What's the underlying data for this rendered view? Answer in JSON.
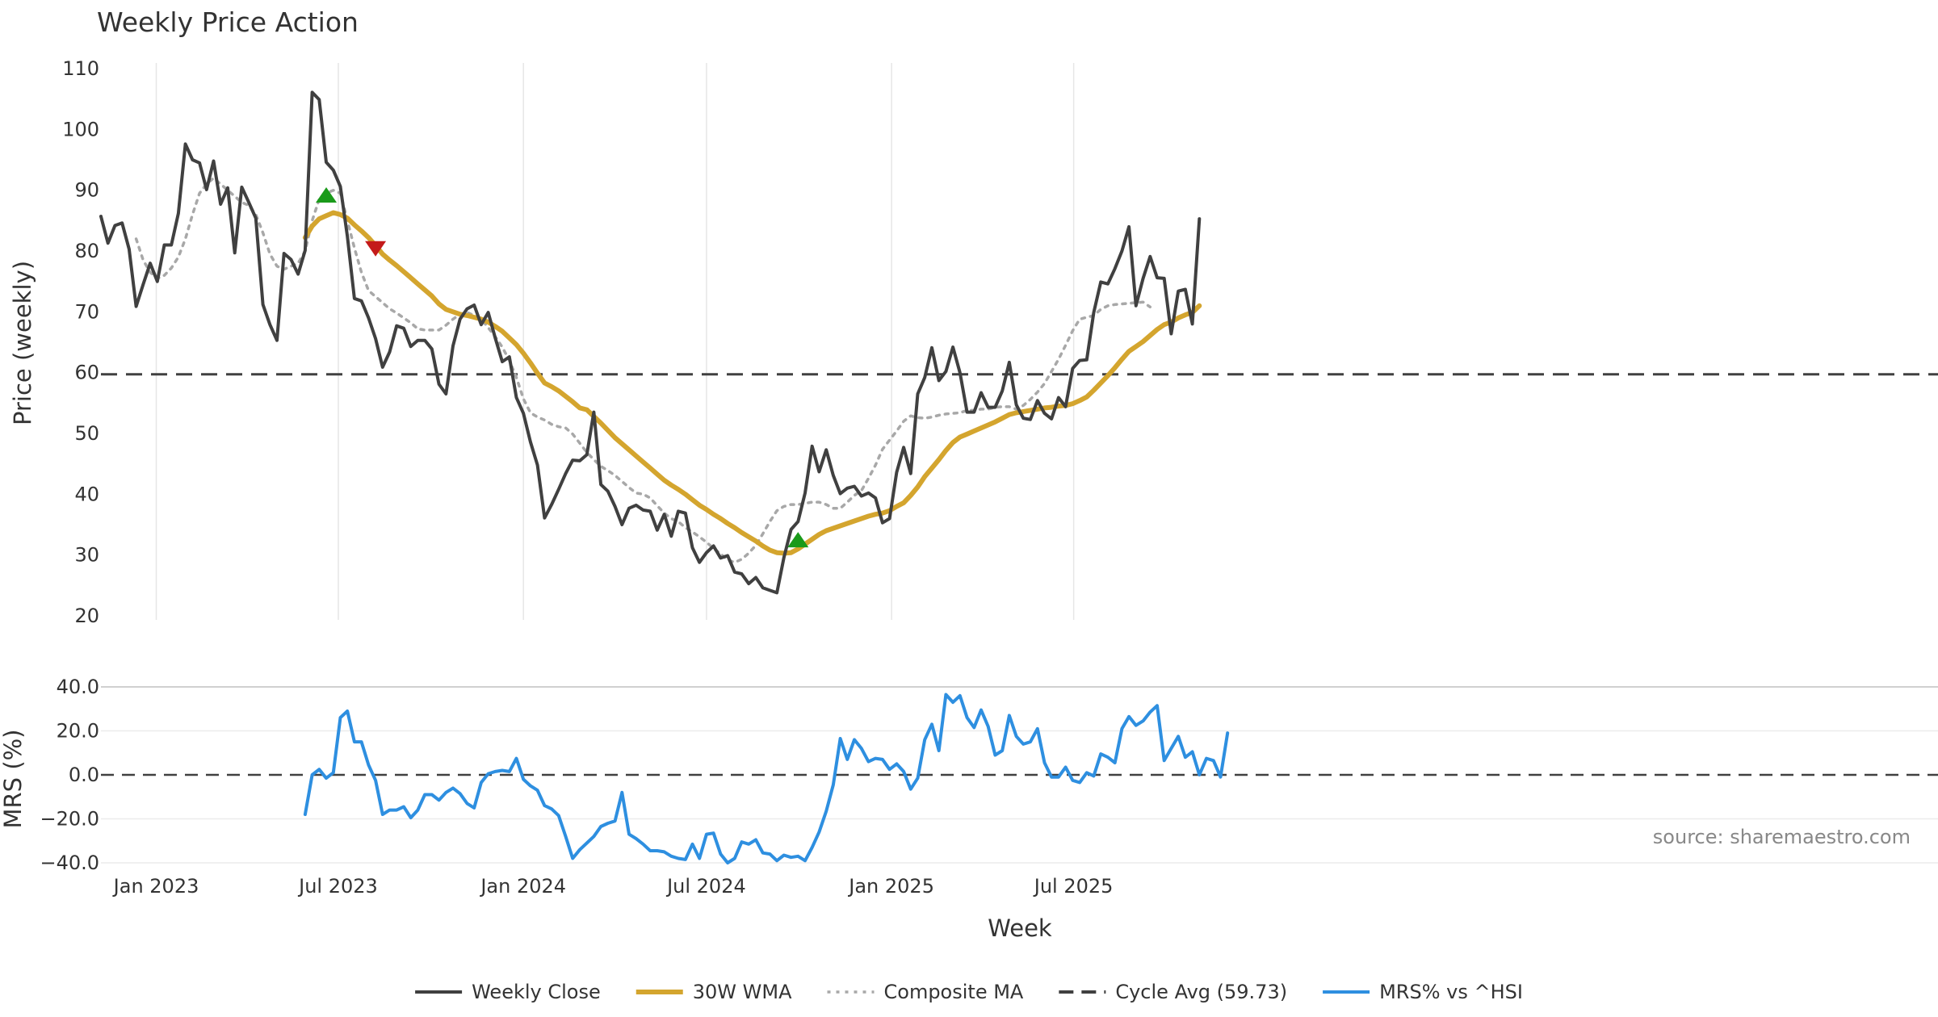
{
  "chart_data": [
    {
      "type": "line",
      "panel": "price",
      "title": "Weekly Price Action",
      "ylabel": "Price (weekly)",
      "ylim": [
        20,
        110
      ],
      "yticks": [
        20,
        30,
        40,
        50,
        60,
        70,
        80,
        90,
        100,
        110
      ],
      "grid": "vertical",
      "x_start": "2022-11-07",
      "x_step_days": 7,
      "series": [
        {
          "name": "Weekly Close",
          "color": "#404040",
          "values": [
            85.7,
            81.3,
            84.2,
            84.6,
            80.3,
            70.9,
            74.5,
            78.0,
            75.0,
            81.0,
            81.0,
            86.2,
            97.6,
            95.0,
            94.5,
            90.1,
            94.8,
            87.7,
            90.4,
            79.7,
            90.5,
            88.0,
            85.4,
            71.2,
            67.9,
            65.3,
            79.6,
            78.6,
            76.2,
            80.1,
            106.1,
            104.9,
            94.6,
            93.3,
            90.6,
            82.4,
            72.2,
            71.8,
            69.0,
            65.6,
            60.9,
            63.4,
            67.7,
            67.3,
            64.3,
            65.3,
            65.3,
            63.9,
            58.1,
            56.5,
            64.4,
            68.8,
            70.5,
            71.1,
            67.9,
            69.9,
            65.7,
            61.8,
            62.6,
            55.9,
            53.3,
            48.6,
            44.8,
            36.1,
            38.3,
            40.8,
            43.4,
            45.6,
            45.5,
            46.5,
            53.5,
            41.6,
            40.5,
            38.0,
            35.0,
            37.7,
            38.2,
            37.4,
            37.2,
            34.1,
            36.7,
            33.1,
            37.2,
            36.9,
            31.2,
            28.8,
            30.4,
            31.5,
            29.5,
            29.9,
            27.2,
            26.9,
            25.3,
            26.3,
            24.6,
            24.2,
            23.8,
            29.6,
            34.2,
            35.5,
            40.2,
            47.9,
            43.7,
            47.3,
            43.1,
            40.1,
            41.0,
            41.3,
            39.7,
            40.2,
            39.4,
            35.3,
            36.0,
            43.6,
            47.7,
            43.4,
            56.5,
            59.2,
            64.1,
            58.7,
            60.2,
            64.2,
            60.0,
            53.5,
            53.5,
            56.7,
            54.3,
            54.3,
            57.0,
            61.7,
            54.7,
            52.5,
            52.3,
            55.4,
            53.3,
            52.4,
            55.9,
            54.4,
            60.7,
            62.0,
            62.1,
            69.9,
            74.9,
            74.6,
            77.1,
            80.0,
            84.0,
            71.0,
            75.5,
            79.1,
            75.6,
            75.5,
            66.4,
            73.4,
            73.7,
            68.0,
            85.3
          ]
        },
        {
          "name": "30W WMA",
          "color": "#D4A52E",
          "start_index": 29,
          "values": [
            82.2,
            84.1,
            85.3,
            85.8,
            86.3,
            86.0,
            85.4,
            84.3,
            83.3,
            82.2,
            80.9,
            79.5,
            78.5,
            77.6,
            76.6,
            75.6,
            74.6,
            73.6,
            72.6,
            71.3,
            70.4,
            70.0,
            69.6,
            69.4,
            69.1,
            68.8,
            68.3,
            67.6,
            66.8,
            65.7,
            64.6,
            63.2,
            61.6,
            59.9,
            58.3,
            57.7,
            57.0,
            56.1,
            55.2,
            54.2,
            53.9,
            52.8,
            51.7,
            50.5,
            49.3,
            48.3,
            47.3,
            46.3,
            45.3,
            44.3,
            43.3,
            42.3,
            41.5,
            40.8,
            40.0,
            39.1,
            38.2,
            37.5,
            36.7,
            36.0,
            35.2,
            34.5,
            33.7,
            33.0,
            32.3,
            31.5,
            30.8,
            30.4,
            30.3,
            30.4,
            31.0,
            31.8,
            32.6,
            33.4,
            34.0,
            34.4,
            34.8,
            35.2,
            35.6,
            36.0,
            36.4,
            36.7,
            36.9,
            37.3,
            38.0,
            38.6,
            39.8,
            41.2,
            42.9,
            44.3,
            45.7,
            47.2,
            48.5,
            49.4,
            49.9,
            50.4,
            50.9,
            51.4,
            51.9,
            52.5,
            53.1,
            53.4,
            53.6,
            53.8,
            54.0,
            54.2,
            54.3,
            54.5,
            54.6,
            54.9,
            55.4,
            56.0,
            57.1,
            58.3,
            59.5,
            60.8,
            62.2,
            63.5,
            64.3,
            65.1,
            66.1,
            67.1,
            67.9,
            68.3,
            69.0,
            69.5,
            69.9,
            71.0
          ]
        },
        {
          "name": "Composite MA",
          "color": "#A8A8A8",
          "start_index": 5,
          "values": [
            82.0,
            78.5,
            76.5,
            75.5,
            76.0,
            77.2,
            79.0,
            82.0,
            86.0,
            89.5,
            91.0,
            92.0,
            91.0,
            90.0,
            89.0,
            88.0,
            87.5,
            86.0,
            83.0,
            79.5,
            77.5,
            77.0,
            77.5,
            78.0,
            80.0,
            85.0,
            88.5,
            89.5,
            90.0,
            89.5,
            85.0,
            80.5,
            76.5,
            73.5,
            72.5,
            71.5,
            70.5,
            69.8,
            69.0,
            68.2,
            67.2,
            67.0,
            67.0,
            67.0,
            67.8,
            68.8,
            69.6,
            69.9,
            69.4,
            68.8,
            67.4,
            65.9,
            64.2,
            62.0,
            59.2,
            55.7,
            53.4,
            52.7,
            52.2,
            51.5,
            51.1,
            50.9,
            49.9,
            48.4,
            46.9,
            45.7,
            44.6,
            43.9,
            43.1,
            42.1,
            41.1,
            40.2,
            40.0,
            39.4,
            38.1,
            36.9,
            36.0,
            35.5,
            34.5,
            33.8,
            33.0,
            32.1,
            31.1,
            30.2,
            29.2,
            28.8,
            29.3,
            30.3,
            31.6,
            33.5,
            35.5,
            37.3,
            38.0,
            38.3,
            38.3,
            38.5,
            38.7,
            38.7,
            38.3,
            37.7,
            37.7,
            38.7,
            39.8,
            40.6,
            42.6,
            44.8,
            47.4,
            48.9,
            50.4,
            52.0,
            52.9,
            52.6,
            52.5,
            52.7,
            53.0,
            53.2,
            53.3,
            53.4,
            53.8,
            53.8,
            54.0,
            54.0,
            54.3,
            54.4,
            54.4,
            54.0,
            54.6,
            55.6,
            56.8,
            58.2,
            60.2,
            62.2,
            64.5,
            66.9,
            68.8,
            69.1,
            69.4,
            70.4,
            71.0,
            71.2,
            71.3,
            71.4,
            71.5,
            71.6,
            70.8
          ]
        }
      ],
      "reference_line": {
        "name": "Cycle Avg (59.73)",
        "value": 59.73,
        "color": "#404040"
      },
      "markers": [
        {
          "type": "buy",
          "index": 32,
          "value": 89.3,
          "color": "#1A9A1A"
        },
        {
          "type": "sell",
          "index": 39,
          "value": 80.3,
          "color": "#C41A1A"
        },
        {
          "type": "buy",
          "index": 99,
          "value": 32.6,
          "color": "#1A9A1A"
        }
      ]
    },
    {
      "type": "line",
      "panel": "mrs",
      "xlabel": "Week",
      "ylabel": "MRS (%)",
      "ylim": [
        -40,
        40
      ],
      "yticks": [
        "−40.0",
        "−20.0",
        "0.0",
        "20.0",
        "40.0"
      ],
      "ytick_values": [
        -40,
        -20,
        0,
        20,
        40
      ],
      "xticks": [
        "Jan 2023",
        "Jul 2023",
        "Jan 2024",
        "Jul 2024",
        "Jan 2025",
        "Jul 2025"
      ],
      "xtick_dates": [
        "2023-01-01",
        "2023-07-01",
        "2024-01-01",
        "2024-07-01",
        "2025-01-01",
        "2025-07-01"
      ],
      "series": [
        {
          "name": "MRS% vs ^HSI",
          "color": "#2E8FE0",
          "start_index": 29,
          "values": [
            -18.0,
            0.0,
            2.5,
            -1.5,
            1.0,
            26.0,
            29.0,
            15.0,
            15.0,
            4.5,
            -2.5,
            -18.0,
            -16.0,
            -16.0,
            -14.5,
            -19.5,
            -16.0,
            -9.0,
            -9.0,
            -11.5,
            -8.0,
            -6.0,
            -8.5,
            -13.0,
            -15.0,
            -3.5,
            0.5,
            1.5,
            2.0,
            1.5,
            7.5,
            -2.0,
            -5.0,
            -7.0,
            -14.0,
            -15.5,
            -18.5,
            -28.0,
            -38.0,
            -34.0,
            -31.0,
            -28.0,
            -23.5,
            -22.0,
            -21.0,
            -8.0,
            -27.0,
            -29.0,
            -31.5,
            -34.5,
            -34.5,
            -35.0,
            -37.0,
            -38.0,
            -38.5,
            -31.5,
            -38.0,
            -27.0,
            -26.5,
            -36.0,
            -40.0,
            -38.0,
            -30.5,
            -31.5,
            -29.5,
            -35.5,
            -36.0,
            -39.0,
            -36.5,
            -37.5,
            -37.0,
            -39.0,
            -33.0,
            -26.0,
            -16.5,
            -4.5,
            16.5,
            7.0,
            16.0,
            12.0,
            6.0,
            7.5,
            7.0,
            2.5,
            5.0,
            1.5,
            -6.5,
            -1.5,
            16.0,
            23.0,
            11.0,
            36.5,
            33.0,
            36.0,
            26.0,
            21.5,
            29.5,
            22.0,
            9.0,
            11.0,
            27.0,
            17.5,
            14.0,
            15.0,
            21.0,
            5.5,
            -1.0,
            -1.0,
            3.5,
            -2.5,
            -3.5,
            1.0,
            -0.5,
            9.5,
            8.0,
            5.5,
            21.0,
            26.5,
            22.5,
            24.5,
            28.5,
            31.5,
            6.5,
            12.0,
            17.5,
            8.0,
            10.5,
            0.0,
            7.5,
            6.5,
            -1.0,
            19.0
          ]
        }
      ],
      "reference_line": {
        "value": 0,
        "color": "#404040"
      },
      "annotation": "source: sharemaestro.com"
    }
  ],
  "legend": {
    "placement": "bottom-center",
    "items": [
      {
        "label": "Weekly Close",
        "style": "solid",
        "color": "#404040"
      },
      {
        "label": "30W WMA",
        "style": "solid",
        "color": "#D4A52E"
      },
      {
        "label": "Composite MA",
        "style": "dotted",
        "color": "#A8A8A8"
      },
      {
        "label": "Cycle Avg (59.73)",
        "style": "dashed",
        "color": "#404040"
      },
      {
        "label": "MRS% vs ^HSI",
        "style": "solid",
        "color": "#2E8FE0"
      }
    ]
  }
}
